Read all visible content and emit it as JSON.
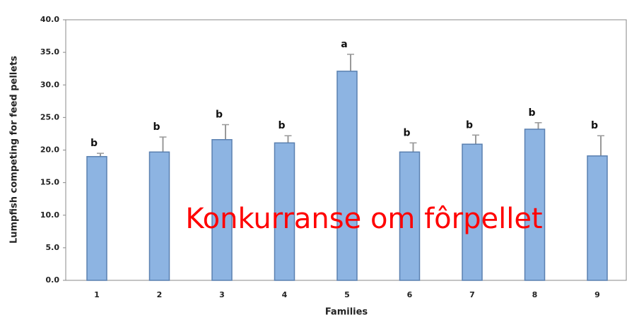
{
  "chart_data": {
    "type": "bar",
    "ylabel": "Lumpfish competing for feed pellets",
    "xlabel": "Families",
    "annotation": "Konkurranse om fôrpellet",
    "categories": [
      "1",
      "2",
      "3",
      "4",
      "5",
      "6",
      "7",
      "8",
      "9"
    ],
    "values": [
      19.0,
      19.7,
      21.6,
      21.1,
      32.1,
      19.7,
      20.9,
      23.2,
      19.1
    ],
    "errors": [
      0.5,
      2.3,
      2.3,
      1.1,
      2.6,
      1.4,
      1.4,
      1.0,
      3.1
    ],
    "letters": [
      "b",
      "b",
      "b",
      "b",
      "a",
      "b",
      "b",
      "b",
      "b"
    ],
    "color": "#8db4e2",
    "ylim": [
      0,
      40
    ],
    "yticks": [
      {
        "value": 0,
        "label": "0.0"
      },
      {
        "value": 5,
        "label": "5.0"
      },
      {
        "value": 10,
        "label": "10.0"
      },
      {
        "value": 15,
        "label": "15.0"
      },
      {
        "value": 20,
        "label": "20.0"
      },
      {
        "value": 25,
        "label": "25.0"
      },
      {
        "value": 30,
        "label": "30.0"
      },
      {
        "value": 35,
        "label": "35.0"
      },
      {
        "value": 40,
        "label": "40.0"
      }
    ]
  }
}
